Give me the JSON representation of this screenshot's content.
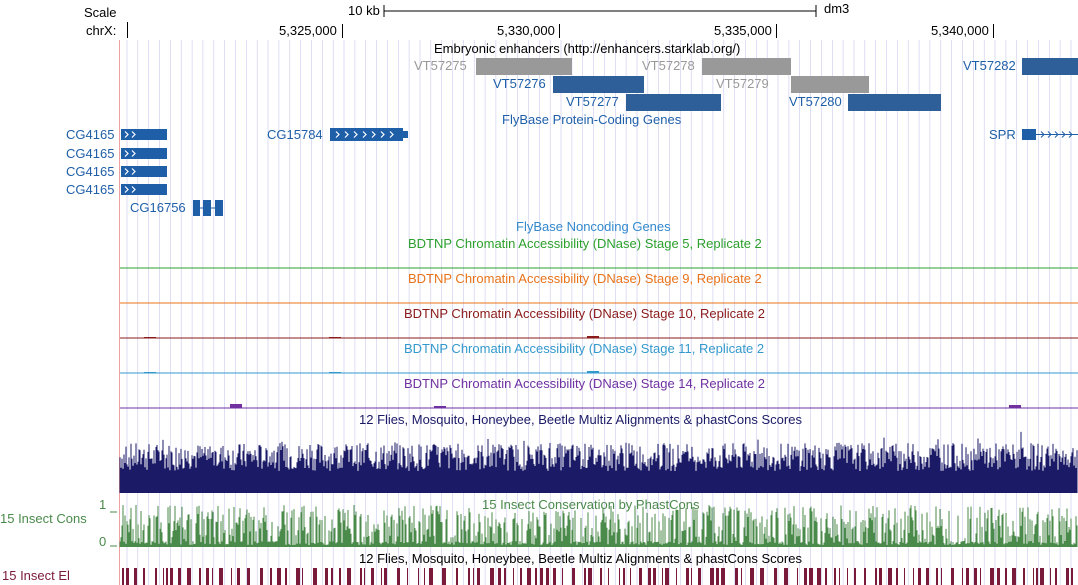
{
  "header": {
    "scale_label": "Scale",
    "chrom_label": "chrX:",
    "scale_bar_text": "10 kb",
    "assembly": "dm3",
    "positions": [
      "5,325,000",
      "5,330,000",
      "5,335,000",
      "5,340,000"
    ]
  },
  "tracks": {
    "enhancers": {
      "title": "Embryonic enhancers (http://enhancers.starklab.org/)",
      "items": [
        "VT57275",
        "VT57278",
        "VT57276",
        "VT57279",
        "VT57277",
        "VT57280",
        "VT57282"
      ]
    },
    "flybase_coding": {
      "title": "FlyBase Protein-Coding Genes",
      "genes": [
        "CG4165",
        "CG4165",
        "CG4165",
        "CG4165",
        "CG16756",
        "CG15784",
        "SPR"
      ]
    },
    "flybase_noncoding": {
      "title": "FlyBase Noncoding Genes"
    },
    "dnase": [
      {
        "title": "BDTNP Chromatin Accessibility (DNase) Stage 5, Replicate 2",
        "color": "#2ca02c"
      },
      {
        "title": "BDTNP Chromatin Accessibility (DNase) Stage 9, Replicate 2",
        "color": "#e8731a"
      },
      {
        "title": "BDTNP Chromatin Accessibility (DNase) Stage 10, Replicate 2",
        "color": "#8b1a1a"
      },
      {
        "title": "BDTNP Chromatin Accessibility (DNase) Stage 11, Replicate 2",
        "color": "#3399cc"
      },
      {
        "title": "BDTNP Chromatin Accessibility (DNase) Stage 14, Replicate 2",
        "color": "#7030a0"
      }
    ],
    "multiz": {
      "title": "12 Flies, Mosquito, Honeybee, Beetle Multiz Alignments & phastCons Scores"
    },
    "insect_cons": {
      "title": "15 Insect Conservation by PhastCons",
      "side_label": "15 Insect Cons",
      "ymax": "1",
      "ymin": "0"
    },
    "insect_el": {
      "title": "12 Flies, Mosquito, Honeybee, Beetle Multiz Alignments & phastCons Scores",
      "side_label": "15 Insect El"
    }
  },
  "colors": {
    "gene_blue": "#1f5fa8",
    "enhancer_gray": "#999999",
    "enhancer_blue": "#2e5f98",
    "multiz_navy": "#1a1a66",
    "cons_green": "#4a8a4a",
    "el_maroon": "#7a1a3a",
    "grid": "#c8c8ee",
    "left_line": "#f0a0a0"
  }
}
